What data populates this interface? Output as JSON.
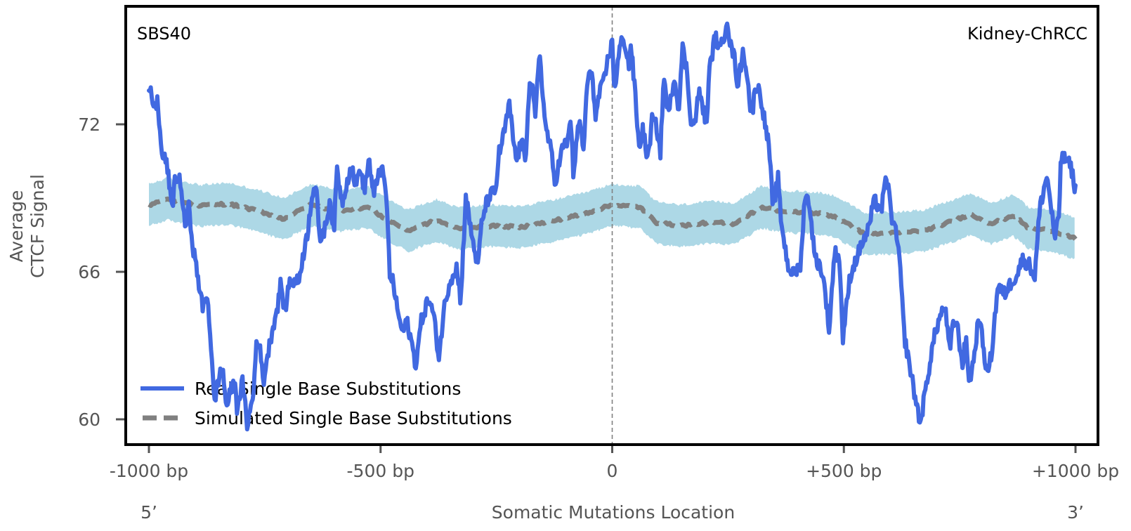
{
  "chart_data": {
    "type": "line",
    "title": "",
    "signature_label": "SBS40",
    "tissue_label": "Kidney-ChRCC",
    "xlabel": "Somatic Mutations Location",
    "ylabel_lines": [
      "Average",
      "CTCF Signal"
    ],
    "five_prime_label": "5’",
    "three_prime_label": "3’",
    "xlim": [
      -1000,
      1000
    ],
    "ylim": [
      59.0,
      76.8
    ],
    "xticks": [
      {
        "value": -1000,
        "label": "-1000 bp"
      },
      {
        "value": -500,
        "label": "-500 bp"
      },
      {
        "value": 0,
        "label": "0"
      },
      {
        "value": 500,
        "label": "+500 bp"
      },
      {
        "value": 1000,
        "label": "+1000 bp"
      }
    ],
    "yticks": [
      {
        "value": 60,
        "label": "60"
      },
      {
        "value": 66,
        "label": "66"
      },
      {
        "value": 72,
        "label": "72"
      }
    ],
    "grid": false,
    "center_line": {
      "x": 0,
      "style": "dashed",
      "color": "#808080"
    },
    "legend": {
      "placement": "lower-left",
      "entries": [
        {
          "label": "Real Single Base Substitutions",
          "style": "solid",
          "color": "#4169e1"
        },
        {
          "label": "Simulated Single Base Substitutions",
          "style": "dashed",
          "color": "#808080"
        }
      ]
    },
    "colors": {
      "real": "#4169e1",
      "simulated": "#808080",
      "band": "#add8e6",
      "frame": "#000000",
      "tick_text": "#555555"
    },
    "series": [
      {
        "name": "Real Single Base Substitutions",
        "style": "solid",
        "x": [
          -1000,
          -996,
          -988,
          -981,
          -973,
          -961,
          -950,
          -944,
          -932,
          -922,
          -914,
          -904,
          -892,
          -884,
          -874,
          -864,
          -859,
          -852,
          -841,
          -833,
          -816,
          -810,
          -798,
          -788,
          -775,
          -768,
          -763,
          -753,
          -745,
          -733,
          -723,
          -715,
          -707,
          -697,
          -677,
          -669,
          -659,
          -647,
          -639,
          -632,
          -619,
          -609,
          -601,
          -594,
          -583,
          -571,
          -563,
          -553,
          -544,
          -536,
          -525,
          -515,
          -503,
          -495,
          -488,
          -480,
          -472,
          -465,
          -454,
          -442,
          -434,
          -424,
          -412,
          -397,
          -386,
          -374,
          -363,
          -351,
          -336,
          -327,
          -316,
          -306,
          -298,
          -290,
          -283,
          -275,
          -265,
          -251,
          -245,
          -237,
          -222,
          -215,
          -207,
          -196,
          -187,
          -181,
          -175,
          -166,
          -157,
          -146,
          -131,
          -124,
          -108,
          -96,
          -90,
          -84,
          -71,
          -61,
          -55,
          -43,
          -36,
          -30,
          -17,
          -8,
          0,
          5,
          17,
          25,
          36,
          40,
          48,
          58,
          66,
          77,
          86,
          96,
          104,
          111,
          122,
          134,
          143,
          152,
          161,
          169,
          177,
          187,
          195,
          203,
          210,
          222,
          233,
          245,
          247,
          255,
          263,
          271,
          283,
          290,
          301,
          309,
          319,
          331,
          339,
          343,
          346,
          358,
          364,
          373,
          380,
          392,
          407,
          415,
          425,
          431,
          437,
          450,
          460,
          468,
          480,
          490,
          498,
          513,
          528,
          540,
          551,
          566,
          581,
          592,
          604,
          613,
          619,
          631,
          642,
          650,
          657,
          665,
          673,
          680,
          689,
          698,
          710,
          718,
          729,
          736,
          744,
          756,
          763,
          771,
          781,
          791,
          801,
          809,
          819,
          832,
          847,
          862,
          874,
          885,
          900,
          912,
          923,
          938,
          945,
          956,
          965,
          968,
          980,
          991,
          1000
        ],
        "y": [
          73.1,
          73.3,
          72.6,
          73.0,
          70.8,
          70.4,
          68.5,
          69.8,
          69.7,
          67.8,
          68.6,
          66.9,
          65.5,
          64.5,
          65.1,
          62.5,
          60.5,
          61.5,
          62.1,
          60.5,
          61.6,
          60.5,
          61.5,
          59.8,
          60.9,
          63.1,
          63.3,
          61.5,
          62.5,
          63.7,
          64.5,
          65.6,
          64.3,
          65.6,
          65.6,
          66.5,
          67.4,
          69.3,
          69.5,
          67.3,
          67.8,
          69.0,
          67.5,
          70.2,
          68.8,
          69.8,
          70.3,
          69.5,
          70.3,
          69.2,
          70.6,
          69.0,
          70.2,
          70.0,
          69.2,
          65.9,
          65.5,
          64.6,
          63.6,
          63.9,
          63.2,
          62.2,
          64.0,
          64.9,
          64.3,
          62.5,
          64.5,
          65.6,
          66.2,
          64.8,
          69.1,
          67.8,
          67.0,
          66.2,
          67.8,
          68.6,
          69.1,
          69.3,
          70.8,
          71.3,
          72.8,
          71.6,
          70.5,
          71.3,
          70.6,
          73.1,
          73.9,
          72.2,
          75.1,
          72.2,
          70.8,
          69.6,
          71.0,
          71.3,
          72.3,
          70.0,
          72.2,
          70.9,
          73.6,
          74.2,
          72.1,
          73.1,
          73.8,
          74.8,
          75.3,
          73.4,
          75.2,
          75.5,
          74.4,
          75.3,
          73.6,
          71.0,
          71.8,
          70.5,
          72.2,
          71.9,
          70.8,
          73.9,
          72.4,
          74.0,
          72.6,
          75.1,
          74.2,
          72.3,
          71.9,
          73.3,
          72.8,
          71.9,
          74.2,
          75.6,
          75.0,
          75.9,
          76.5,
          75.2,
          74.8,
          73.6,
          75.0,
          74.2,
          72.2,
          73.6,
          73.3,
          71.9,
          71.0,
          69.9,
          68.5,
          69.8,
          68.2,
          67.0,
          66.2,
          65.9,
          66.3,
          69.0,
          68.9,
          67.8,
          66.6,
          66.2,
          65.2,
          63.6,
          66.8,
          66.6,
          63.3,
          65.8,
          66.6,
          67.2,
          67.6,
          68.9,
          68.5,
          69.9,
          68.2,
          67.5,
          66.8,
          63.3,
          62.2,
          61.3,
          60.6,
          59.8,
          60.8,
          61.6,
          62.7,
          63.6,
          64.3,
          64.6,
          62.7,
          64.0,
          63.9,
          62.2,
          63.3,
          61.5,
          62.5,
          64.2,
          63.0,
          61.8,
          62.7,
          65.4,
          65.1,
          65.6,
          65.9,
          66.5,
          66.3,
          65.8,
          68.6,
          69.9,
          69.0,
          67.3,
          68.4,
          70.6,
          70.6,
          70.2,
          69.3
        ]
      },
      {
        "name": "Simulated Single Base Substitutions",
        "style": "dashed",
        "x": [
          -1000,
          -960,
          -888,
          -829,
          -757,
          -710,
          -651,
          -592,
          -527,
          -493,
          -440,
          -380,
          -334,
          -262,
          -196,
          -131,
          -64,
          0,
          61,
          94,
          145,
          212,
          263,
          322,
          375,
          442,
          481,
          545,
          610,
          675,
          740,
          772,
          819,
          866,
          899,
          951,
          1000
        ],
        "y": [
          68.72,
          68.96,
          68.68,
          68.77,
          68.44,
          68.15,
          68.72,
          68.49,
          68.63,
          68.2,
          67.68,
          68.1,
          67.77,
          67.87,
          67.82,
          68.06,
          68.34,
          68.72,
          68.63,
          68.01,
          67.87,
          68.01,
          67.96,
          68.63,
          68.44,
          68.39,
          68.25,
          67.53,
          67.58,
          67.68,
          68.1,
          68.34,
          67.96,
          68.3,
          67.77,
          67.68,
          67.34
        ],
        "band_halfwidth": 0.85
      }
    ]
  }
}
